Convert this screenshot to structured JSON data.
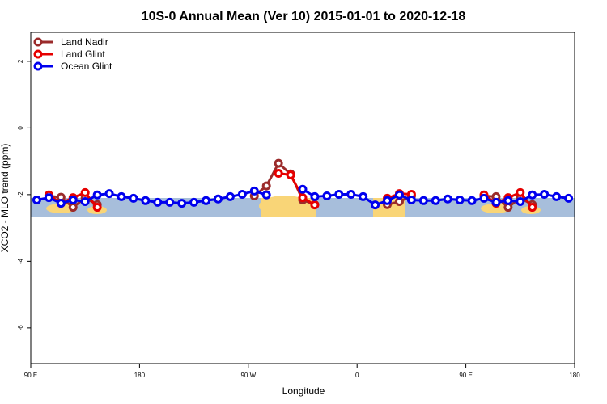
{
  "chart_data": {
    "type": "line",
    "title": "10S-0 Annual Mean (Ver 10)   2015-01-01 to 2020-12-18",
    "x_label": "Longitude",
    "y_label": "XCO2 - MLO trend (ppm)",
    "x": [
      95,
      105,
      115,
      125,
      135,
      145,
      155,
      165,
      175,
      185,
      195,
      205,
      215,
      225,
      235,
      245,
      255,
      265,
      275,
      285,
      295,
      305,
      315,
      325,
      335,
      345,
      355,
      365,
      375,
      385,
      395,
      405,
      415,
      425,
      435,
      445,
      455,
      465,
      475,
      485,
      495,
      505,
      515,
      525,
      535
    ],
    "series": [
      {
        "name": "Land Nadir",
        "color": "#9b2b2b",
        "values": [
          null,
          -2.04,
          -2.08,
          -2.38,
          -2.1,
          -2.3,
          null,
          null,
          null,
          null,
          null,
          null,
          null,
          null,
          null,
          null,
          null,
          null,
          -2.04,
          -1.74,
          -1.06,
          -1.38,
          -2.16,
          -2.3,
          null,
          null,
          null,
          null,
          null,
          -2.3,
          -2.21,
          -2.04,
          null,
          null,
          null,
          null,
          null,
          -2.04,
          -2.06,
          -2.38,
          -2.1,
          -2.3,
          null,
          null,
          null
        ]
      },
      {
        "name": "Land Glint",
        "color": "#e60000",
        "values": [
          null,
          -2.01,
          -2.26,
          -2.09,
          -1.94,
          -2.38,
          null,
          null,
          null,
          null,
          null,
          null,
          null,
          null,
          null,
          null,
          null,
          null,
          null,
          null,
          -1.36,
          -1.41,
          -2.09,
          -2.31,
          null,
          null,
          null,
          null,
          null,
          -2.11,
          -1.97,
          -1.99,
          null,
          null,
          null,
          null,
          null,
          -2.01,
          -2.26,
          -2.09,
          -1.94,
          -2.38,
          null,
          null,
          null
        ]
      },
      {
        "name": "Ocean Glint",
        "color": "#0000ee",
        "values": [
          -2.16,
          -2.09,
          -2.26,
          -2.16,
          -2.21,
          -2.01,
          -1.97,
          -2.06,
          -2.11,
          -2.18,
          -2.23,
          -2.23,
          -2.26,
          -2.23,
          -2.18,
          -2.13,
          -2.06,
          -1.99,
          -1.89,
          -2.01,
          null,
          null,
          -1.84,
          -2.06,
          -2.04,
          -1.99,
          -1.99,
          -2.06,
          -2.31,
          -2.18,
          -2.01,
          -2.16,
          -2.18,
          -2.18,
          -2.13,
          -2.16,
          -2.18,
          -2.11,
          -2.23,
          -2.18,
          -2.21,
          -2.01,
          -1.99,
          -2.06,
          -2.11
        ]
      }
    ],
    "xlim": [
      90,
      540
    ],
    "xticks": [
      {
        "value": 90,
        "label": "90 E"
      },
      {
        "value": 180,
        "label": "180"
      },
      {
        "value": 270,
        "label": "90 W"
      },
      {
        "value": 360,
        "label": "0"
      },
      {
        "value": 450,
        "label": "90 E"
      },
      {
        "value": 540,
        "label": "180"
      }
    ],
    "ylim": [
      -7.07,
      2.87
    ],
    "yticks": [
      -6,
      -4,
      -2,
      0,
      2
    ],
    "legend": "top-left"
  }
}
